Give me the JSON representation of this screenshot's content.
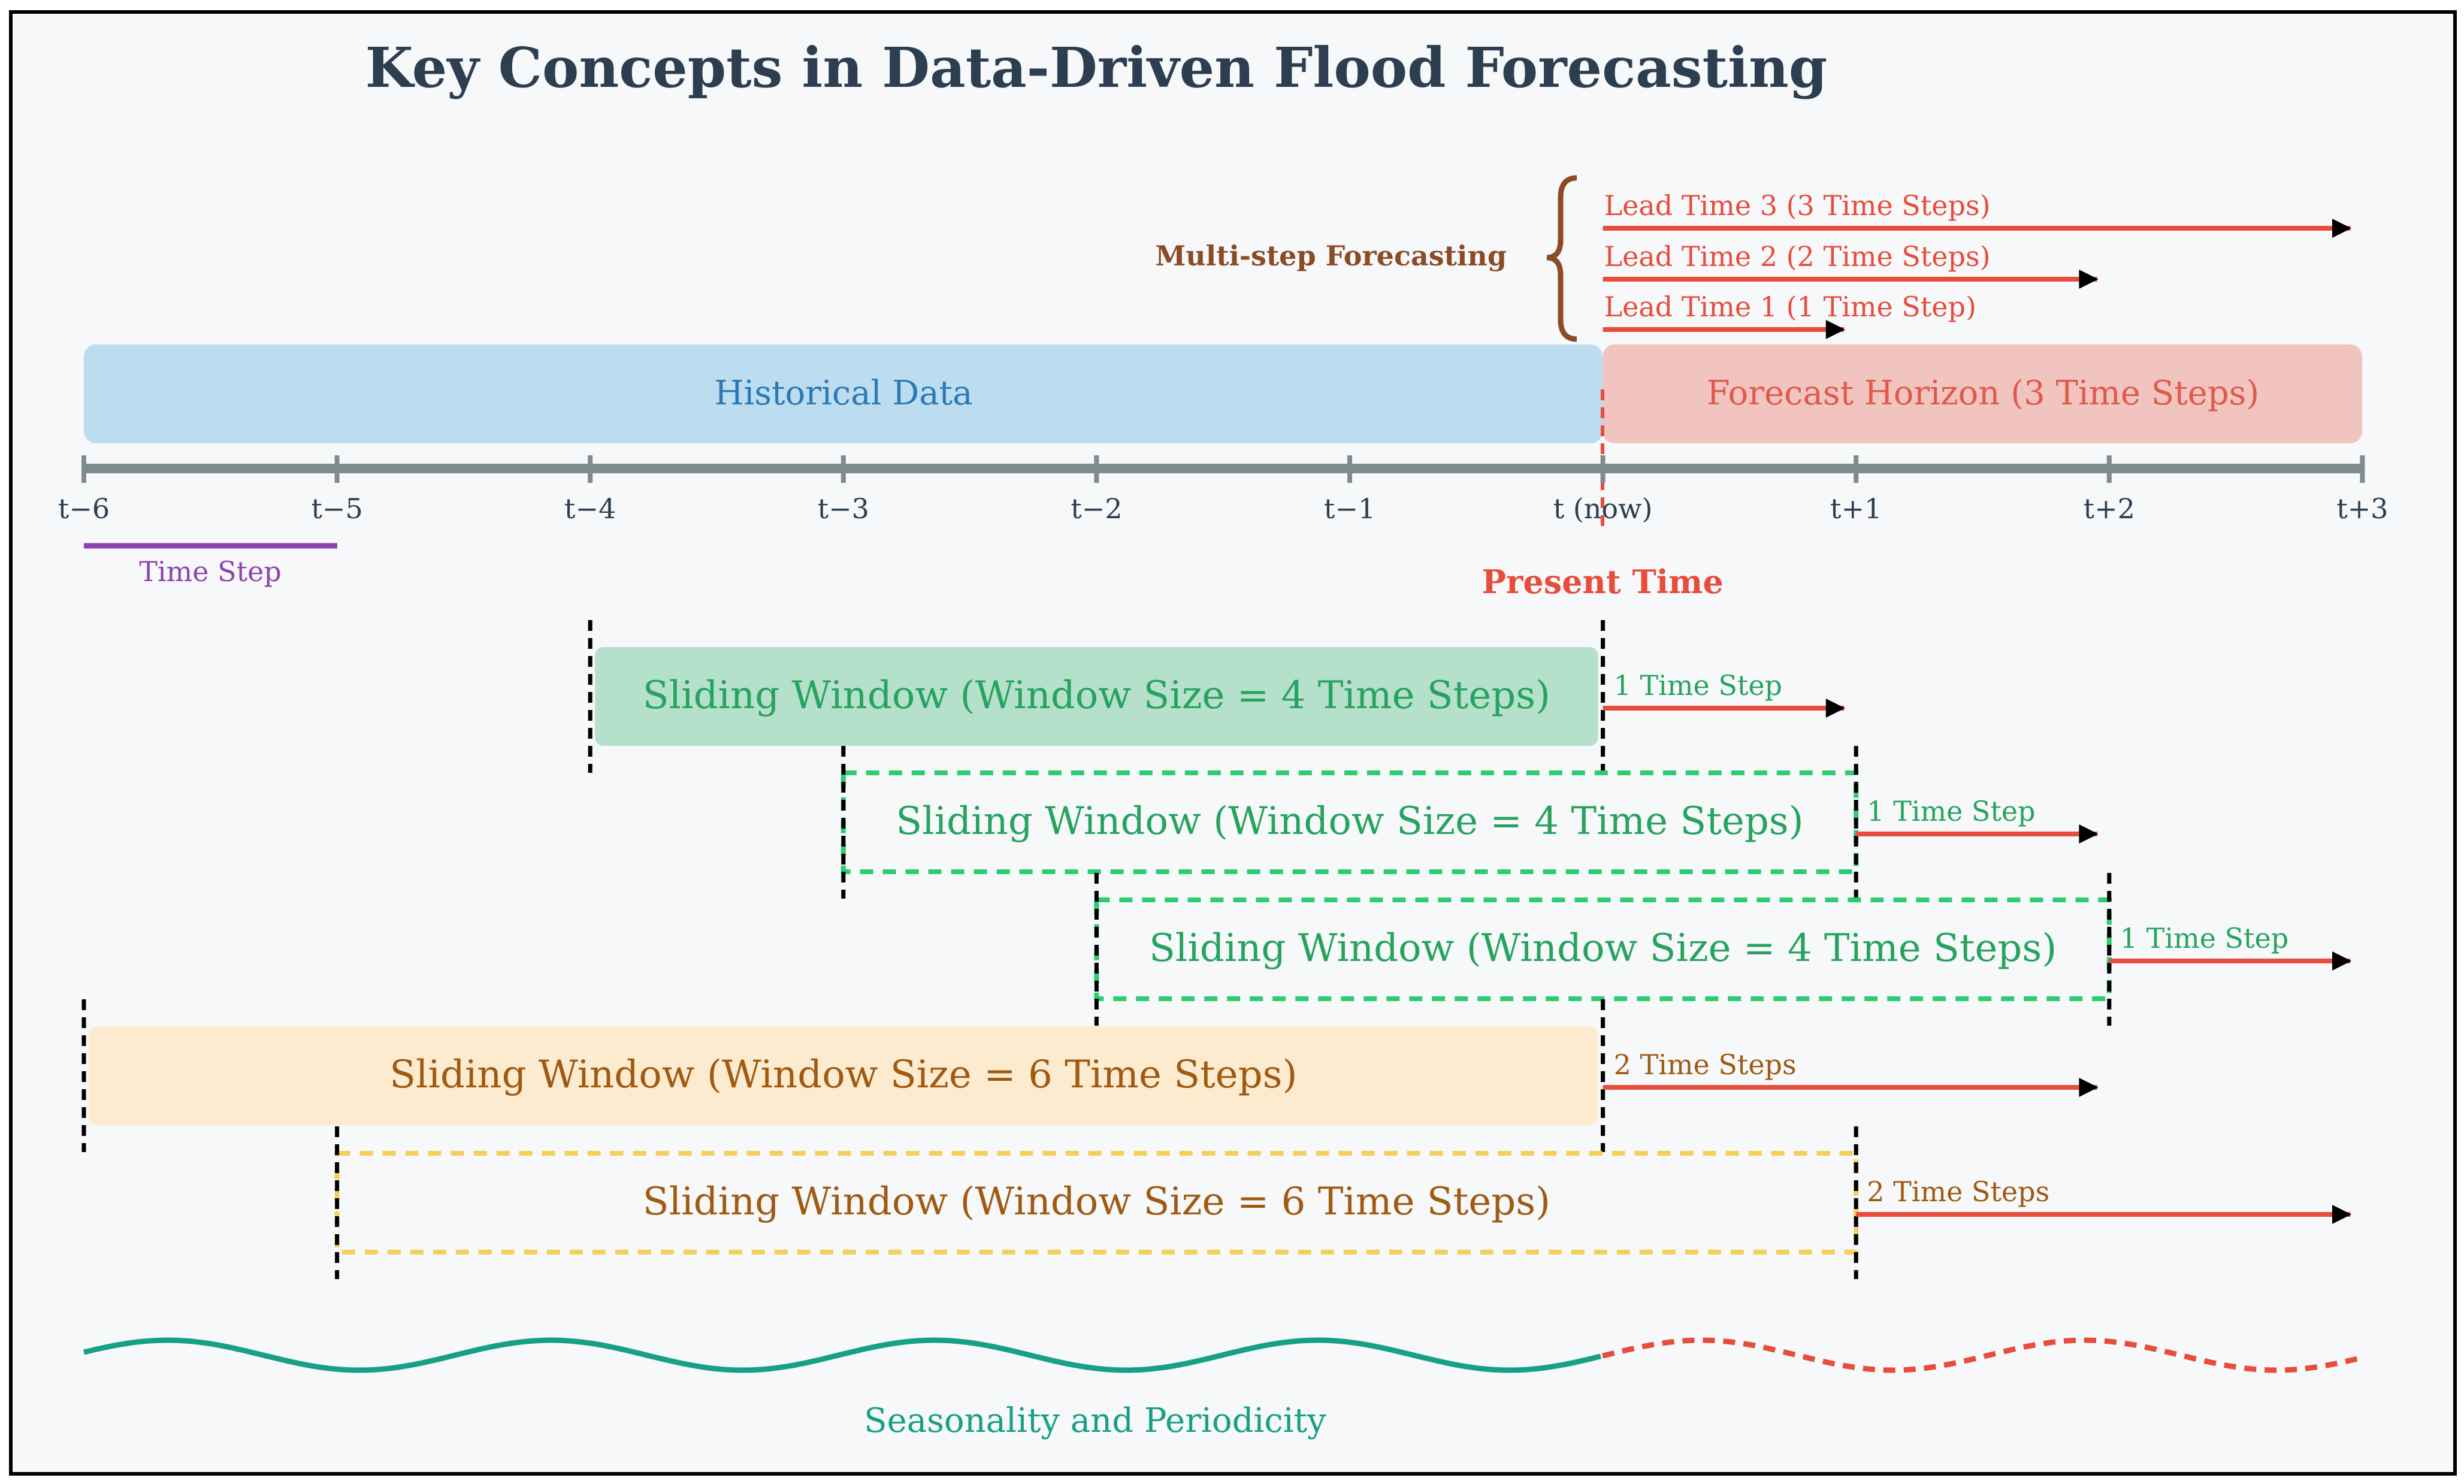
{
  "title": "Key Concepts in Data-Driven Flood Forecasting",
  "timeline": {
    "ticks": [
      "t−6",
      "t−5",
      "t−4",
      "t−3",
      "t−2",
      "t−1",
      "t (now)",
      "t+1",
      "t+2",
      "t+3"
    ],
    "present_time_label": "Present Time",
    "time_step_label": "Time Step"
  },
  "historical_label": "Historical Data",
  "forecast_label": "Forecast Horizon (3 Time Steps)",
  "multistep": {
    "label": "Multi-step Forecasting",
    "lead_times": [
      {
        "label": "Lead Time 3 (3 Time Steps)",
        "steps": 3
      },
      {
        "label": "Lead Time 2 (2 Time Steps)",
        "steps": 2
      },
      {
        "label": "Lead Time 1 (1 Time Step)",
        "steps": 1
      }
    ]
  },
  "windows": [
    {
      "label": "Sliding Window (Window Size = 4 Time Steps)",
      "start": -4,
      "end": 0,
      "style": "green-solid",
      "horizon_label": "1 Time Step",
      "horizon": 1
    },
    {
      "label": "Sliding Window (Window Size = 4 Time Steps)",
      "start": -3,
      "end": 1,
      "style": "green-dashed",
      "horizon_label": "1 Time Step",
      "horizon": 1
    },
    {
      "label": "Sliding Window (Window Size = 4 Time Steps)",
      "start": -2,
      "end": 2,
      "style": "green-dashed",
      "horizon_label": "1 Time Step",
      "horizon": 1
    },
    {
      "label": "Sliding Window (Window Size = 6 Time Steps)",
      "start": -6,
      "end": 0,
      "style": "orange-solid",
      "horizon_label": "2 Time Steps",
      "horizon": 2
    },
    {
      "label": "Sliding Window (Window Size = 6 Time Steps)",
      "start": -5,
      "end": 1,
      "style": "orange-dashed",
      "horizon_label": "2 Time Steps",
      "horizon": 2
    }
  ],
  "seasonality_label": "Seasonality and Periodicity",
  "colors": {
    "title": "#2c3e50",
    "historical_fill": "#bcdcf0",
    "historical_text": "#2a7ab8",
    "forecast_fill": "#f2c4c0",
    "forecast_text": "#e05a4a",
    "red": "#e74c3c",
    "brown": "#8b4b25",
    "purple": "#8e44ad",
    "green_fill": "#b5e0cb",
    "green_text": "#27a35f",
    "green_dash": "#2ecc71",
    "orange_fill": "#fdebd0",
    "orange_text": "#a05a12",
    "orange_dash": "#f6ce5b",
    "teal": "#17a085",
    "axis": "#7f8c8d"
  }
}
